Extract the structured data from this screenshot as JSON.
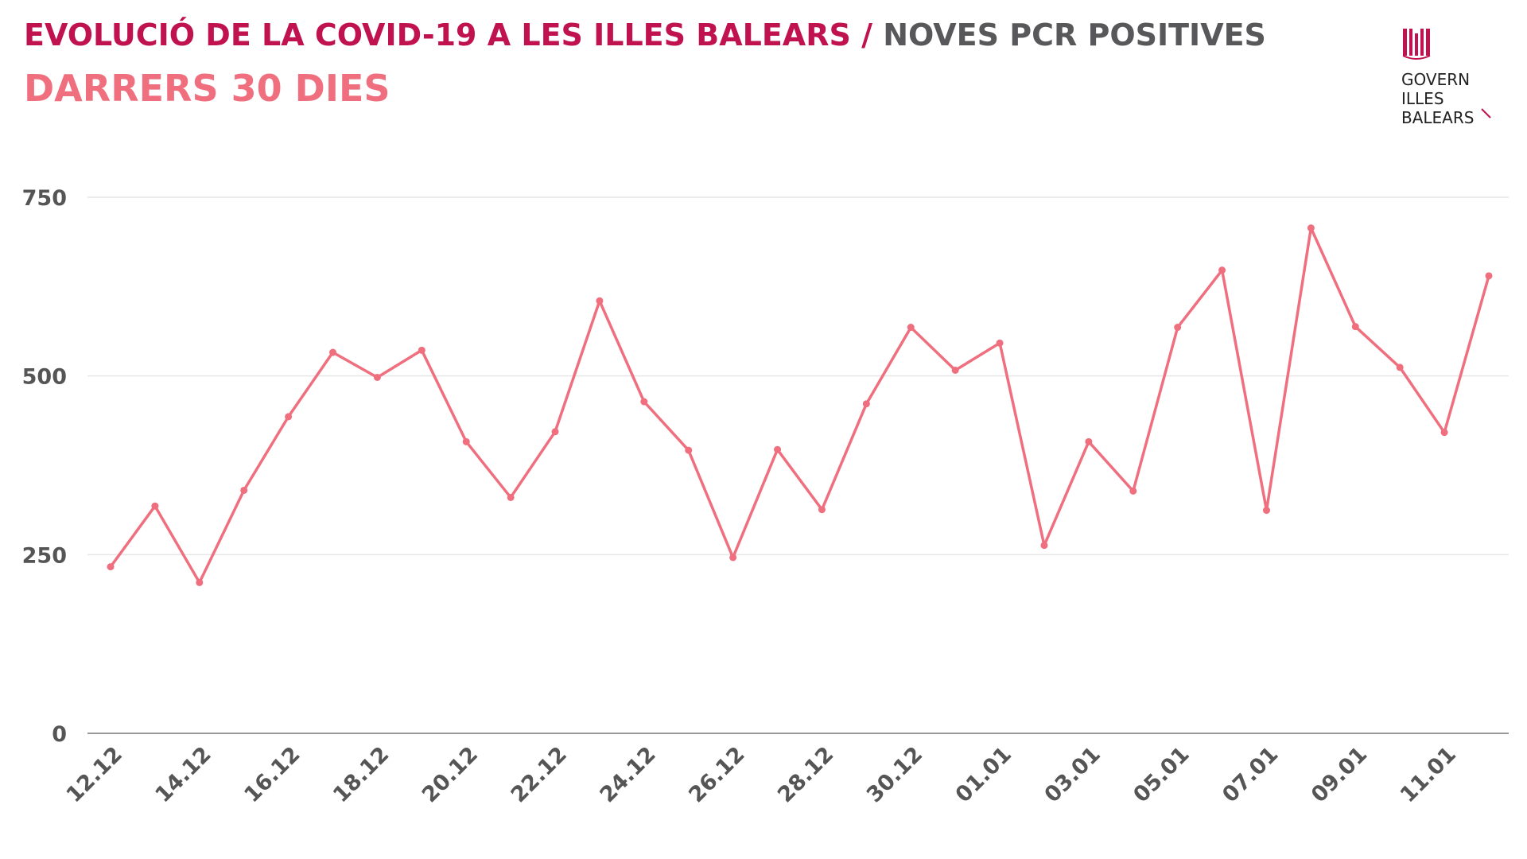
{
  "header": {
    "title_main": "EVOLUCIÓ DE LA COVID-19 A LES ILLES BALEARS",
    "title_separator": "/",
    "title_secondary": "NOVES PCR POSITIVES",
    "subtitle": "DARRERS 30 DIES"
  },
  "logo": {
    "icon": "balearic-flag-emblem-icon",
    "lines": [
      "GOVERN",
      "ILLES",
      "BALEARS"
    ]
  },
  "colors": {
    "title_main": "#c0124f",
    "title_secondary": "#58585a",
    "subtitle": "#ef6f7f",
    "series_line": "#ef6f7f",
    "grid": "#e6e6e6",
    "axis": "#999999",
    "tick_text": "#555555"
  },
  "chart_data": {
    "type": "line",
    "title": "EVOLUCIÓ DE LA COVID-19 A LES ILLES BALEARS / NOVES PCR POSITIVES",
    "subtitle": "DARRERS 30 DIES",
    "xlabel": "",
    "ylabel": "",
    "ylim": [
      0,
      750
    ],
    "y_ticks": [
      0,
      250,
      500,
      750
    ],
    "grid": true,
    "legend": "none",
    "x": [
      "12.12",
      "13.12",
      "14.12",
      "15.12",
      "16.12",
      "17.12",
      "18.12",
      "19.12",
      "20.12",
      "21.12",
      "22.12",
      "23.12",
      "24.12",
      "25.12",
      "26.12",
      "27.12",
      "28.12",
      "29.12",
      "30.12",
      "31.12",
      "01.01",
      "02.01",
      "03.01",
      "04.01",
      "05.01",
      "06.01",
      "07.01",
      "08.01",
      "09.01",
      "10.01",
      "11.01",
      "12.01"
    ],
    "x_tick_labels": [
      "12.12",
      "14.12",
      "16.12",
      "18.12",
      "20.12",
      "22.12",
      "24.12",
      "26.12",
      "28.12",
      "30.12",
      "01.01",
      "03.01",
      "05.01",
      "07.01",
      "09.01",
      "11.01"
    ],
    "series": [
      {
        "values": [
          233,
          318,
          211,
          340,
          443,
          533,
          498,
          536,
          408,
          330,
          422,
          605,
          464,
          396,
          246,
          397,
          313,
          461,
          568,
          508,
          546,
          263,
          408,
          339,
          568,
          648,
          312,
          707,
          569,
          512,
          421,
          640
        ]
      }
    ]
  }
}
